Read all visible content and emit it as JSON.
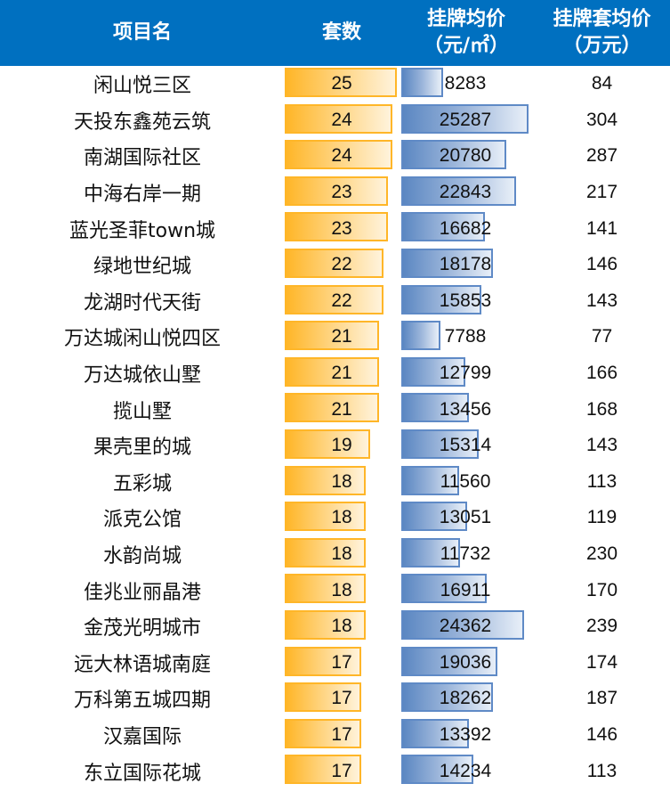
{
  "header": {
    "name": "项目名",
    "count": "套数",
    "price_line1": "挂牌均价",
    "price_line2": "（元/㎡）",
    "unit_price_line1": "挂牌套均价",
    "unit_price_line2": "（万元）"
  },
  "colors": {
    "header_bg": "#0070C0",
    "count_bar": "#FFB628",
    "price_bar": "#5B87C2"
  },
  "rows": [
    {
      "name": "闲山悦三区",
      "count": "25",
      "price": "8283",
      "unit_price": "84"
    },
    {
      "name": "天投东鑫苑云筑",
      "count": "24",
      "price": "25287",
      "unit_price": "304"
    },
    {
      "name": "南湖国际社区",
      "count": "24",
      "price": "20780",
      "unit_price": "287"
    },
    {
      "name": "中海右岸一期",
      "count": "23",
      "price": "22843",
      "unit_price": "217"
    },
    {
      "name": "蓝光圣菲town城",
      "count": "23",
      "price": "16682",
      "unit_price": "141"
    },
    {
      "name": "绿地世纪城",
      "count": "22",
      "price": "18178",
      "unit_price": "146"
    },
    {
      "name": "龙湖时代天街",
      "count": "22",
      "price": "15853",
      "unit_price": "143"
    },
    {
      "name": "万达城闲山悦四区",
      "count": "21",
      "price": "7788",
      "unit_price": "77"
    },
    {
      "name": "万达城依山墅",
      "count": "21",
      "price": "12799",
      "unit_price": "166"
    },
    {
      "name": "揽山墅",
      "count": "21",
      "price": "13456",
      "unit_price": "168"
    },
    {
      "name": "果壳里的城",
      "count": "19",
      "price": "15314",
      "unit_price": "143"
    },
    {
      "name": "五彩城",
      "count": "18",
      "price": "11560",
      "unit_price": "113"
    },
    {
      "name": "派克公馆",
      "count": "18",
      "price": "13051",
      "unit_price": "119"
    },
    {
      "name": "水韵尚城",
      "count": "18",
      "price": "11732",
      "unit_price": "230"
    },
    {
      "name": "佳兆业丽晶港",
      "count": "18",
      "price": "16911",
      "unit_price": "170"
    },
    {
      "name": "金茂光明城市",
      "count": "18",
      "price": "24362",
      "unit_price": "239"
    },
    {
      "name": "远大林语城南庭",
      "count": "17",
      "price": "19036",
      "unit_price": "174"
    },
    {
      "name": "万科第五城四期",
      "count": "17",
      "price": "18262",
      "unit_price": "187"
    },
    {
      "name": "汉嘉国际",
      "count": "17",
      "price": "13392",
      "unit_price": "146"
    },
    {
      "name": "东立国际花城",
      "count": "17",
      "price": "14234",
      "unit_price": "113"
    }
  ]
}
